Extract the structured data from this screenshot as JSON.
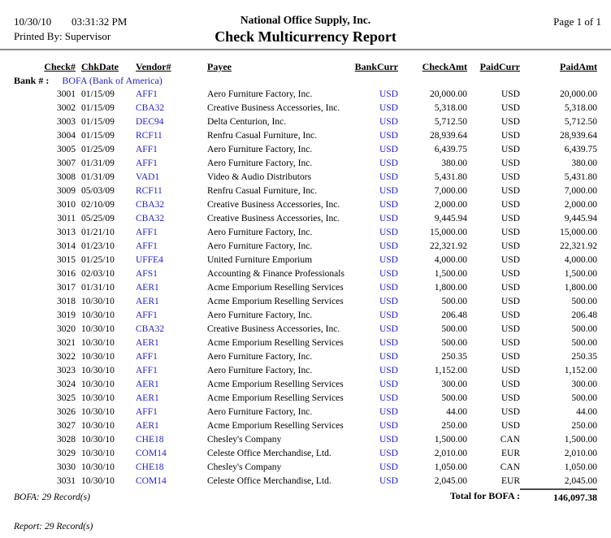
{
  "page": {
    "date": "10/30/10",
    "time": "03:31:32 PM",
    "printed_by": "Printed By: Supervisor",
    "company": "National Office Supply, Inc.",
    "title": "Check Multicurrency Report",
    "page_indicator": "Page 1 of 1"
  },
  "colors": {
    "link_blue": "#2222cc",
    "rule_gray": "#8a8a8a"
  },
  "table": {
    "columns": [
      "Check#",
      "ChkDate",
      "Vendor#",
      "Payee",
      "BankCurr",
      "CheckAmt",
      "PaidCurr",
      "PaidAmt"
    ],
    "bank_group": {
      "label": "Bank # :",
      "value": "BOFA (Bank of America)"
    },
    "rows": [
      {
        "check": "3001",
        "date": "01/15/09",
        "vendor": "AFF1",
        "payee": "Aero Furniture Factory, Inc.",
        "bank_curr": "USD",
        "check_amt": "20,000.00",
        "paid_curr": "USD",
        "paid_amt": "20,000.00"
      },
      {
        "check": "3002",
        "date": "01/15/09",
        "vendor": "CBA32",
        "payee": "Creative Business Accessories, Inc.",
        "bank_curr": "USD",
        "check_amt": "5,318.00",
        "paid_curr": "USD",
        "paid_amt": "5,318.00"
      },
      {
        "check": "3003",
        "date": "01/15/09",
        "vendor": "DEC94",
        "payee": "Delta Centurion, Inc.",
        "bank_curr": "USD",
        "check_amt": "5,712.50",
        "paid_curr": "USD",
        "paid_amt": "5,712.50"
      },
      {
        "check": "3004",
        "date": "01/15/09",
        "vendor": "RCF11",
        "payee": "Renfru Casual Furniture, Inc.",
        "bank_curr": "USD",
        "check_amt": "28,939.64",
        "paid_curr": "USD",
        "paid_amt": "28,939.64"
      },
      {
        "check": "3005",
        "date": "01/25/09",
        "vendor": "AFF1",
        "payee": "Aero Furniture Factory, Inc.",
        "bank_curr": "USD",
        "check_amt": "6,439.75",
        "paid_curr": "USD",
        "paid_amt": "6,439.75"
      },
      {
        "check": "3007",
        "date": "01/31/09",
        "vendor": "AFF1",
        "payee": "Aero Furniture Factory, Inc.",
        "bank_curr": "USD",
        "check_amt": "380.00",
        "paid_curr": "USD",
        "paid_amt": "380.00"
      },
      {
        "check": "3008",
        "date": "01/31/09",
        "vendor": "VAD1",
        "payee": "Video & Audio Distributors",
        "bank_curr": "USD",
        "check_amt": "5,431.80",
        "paid_curr": "USD",
        "paid_amt": "5,431.80"
      },
      {
        "check": "3009",
        "date": "05/03/09",
        "vendor": "RCF11",
        "payee": "Renfru Casual Furniture, Inc.",
        "bank_curr": "USD",
        "check_amt": "7,000.00",
        "paid_curr": "USD",
        "paid_amt": "7,000.00"
      },
      {
        "check": "3010",
        "date": "02/10/09",
        "vendor": "CBA32",
        "payee": "Creative Business Accessories, Inc.",
        "bank_curr": "USD",
        "check_amt": "2,000.00",
        "paid_curr": "USD",
        "paid_amt": "2,000.00"
      },
      {
        "check": "3011",
        "date": "05/25/09",
        "vendor": "CBA32",
        "payee": "Creative Business Accessories, Inc.",
        "bank_curr": "USD",
        "check_amt": "9,445.94",
        "paid_curr": "USD",
        "paid_amt": "9,445.94"
      },
      {
        "check": "3013",
        "date": "01/21/10",
        "vendor": "AFF1",
        "payee": "Aero Furniture Factory, Inc.",
        "bank_curr": "USD",
        "check_amt": "15,000.00",
        "paid_curr": "USD",
        "paid_amt": "15,000.00"
      },
      {
        "check": "3014",
        "date": "01/23/10",
        "vendor": "AFF1",
        "payee": "Aero Furniture Factory, Inc.",
        "bank_curr": "USD",
        "check_amt": "22,321.92",
        "paid_curr": "USD",
        "paid_amt": "22,321.92"
      },
      {
        "check": "3015",
        "date": "01/25/10",
        "vendor": "UFFE4",
        "payee": "United Furniture Emporium",
        "bank_curr": "USD",
        "check_amt": "4,000.00",
        "paid_curr": "USD",
        "paid_amt": "4,000.00"
      },
      {
        "check": "3016",
        "date": "02/03/10",
        "vendor": "AFS1",
        "payee": "Accounting & Finance Professionals",
        "bank_curr": "USD",
        "check_amt": "1,500.00",
        "paid_curr": "USD",
        "paid_amt": "1,500.00"
      },
      {
        "check": "3017",
        "date": "01/31/10",
        "vendor": "AER1",
        "payee": "Acme Emporium Reselling Services",
        "bank_curr": "USD",
        "check_amt": "1,800.00",
        "paid_curr": "USD",
        "paid_amt": "1,800.00"
      },
      {
        "check": "3018",
        "date": "10/30/10",
        "vendor": "AER1",
        "payee": "Acme Emporium Reselling Services",
        "bank_curr": "USD",
        "check_amt": "500.00",
        "paid_curr": "USD",
        "paid_amt": "500.00"
      },
      {
        "check": "3019",
        "date": "10/30/10",
        "vendor": "AFF1",
        "payee": "Aero Furniture Factory, Inc.",
        "bank_curr": "USD",
        "check_amt": "206.48",
        "paid_curr": "USD",
        "paid_amt": "206.48"
      },
      {
        "check": "3020",
        "date": "10/30/10",
        "vendor": "CBA32",
        "payee": "Creative Business Accessories, Inc.",
        "bank_curr": "USD",
        "check_amt": "500.00",
        "paid_curr": "USD",
        "paid_amt": "500.00"
      },
      {
        "check": "3021",
        "date": "10/30/10",
        "vendor": "AER1",
        "payee": "Acme Emporium Reselling Services",
        "bank_curr": "USD",
        "check_amt": "500.00",
        "paid_curr": "USD",
        "paid_amt": "500.00"
      },
      {
        "check": "3022",
        "date": "10/30/10",
        "vendor": "AFF1",
        "payee": "Aero Furniture Factory, Inc.",
        "bank_curr": "USD",
        "check_amt": "250.35",
        "paid_curr": "USD",
        "paid_amt": "250.35"
      },
      {
        "check": "3023",
        "date": "10/30/10",
        "vendor": "AFF1",
        "payee": "Aero Furniture Factory, Inc.",
        "bank_curr": "USD",
        "check_amt": "1,152.00",
        "paid_curr": "USD",
        "paid_amt": "1,152.00"
      },
      {
        "check": "3024",
        "date": "10/30/10",
        "vendor": "AER1",
        "payee": "Acme Emporium Reselling Services",
        "bank_curr": "USD",
        "check_amt": "300.00",
        "paid_curr": "USD",
        "paid_amt": "300.00"
      },
      {
        "check": "3025",
        "date": "10/30/10",
        "vendor": "AER1",
        "payee": "Acme Emporium Reselling Services",
        "bank_curr": "USD",
        "check_amt": "500.00",
        "paid_curr": "USD",
        "paid_amt": "500.00"
      },
      {
        "check": "3026",
        "date": "10/30/10",
        "vendor": "AFF1",
        "payee": "Aero Furniture Factory, Inc.",
        "bank_curr": "USD",
        "check_amt": "44.00",
        "paid_curr": "USD",
        "paid_amt": "44.00"
      },
      {
        "check": "3027",
        "date": "10/30/10",
        "vendor": "AER1",
        "payee": "Acme Emporium Reselling Services",
        "bank_curr": "USD",
        "check_amt": "250.00",
        "paid_curr": "USD",
        "paid_amt": "250.00"
      },
      {
        "check": "3028",
        "date": "10/30/10",
        "vendor": "CHE18",
        "payee": "Chesley's Company",
        "bank_curr": "USD",
        "check_amt": "1,500.00",
        "paid_curr": "CAN",
        "paid_amt": "1,500.00"
      },
      {
        "check": "3029",
        "date": "10/30/10",
        "vendor": "COM14",
        "payee": "Celeste Office Merchandise, Ltd.",
        "bank_curr": "USD",
        "check_amt": "2,010.00",
        "paid_curr": "EUR",
        "paid_amt": "2,010.00"
      },
      {
        "check": "3030",
        "date": "10/30/10",
        "vendor": "CHE18",
        "payee": "Chesley's Company",
        "bank_curr": "USD",
        "check_amt": "1,050.00",
        "paid_curr": "CAN",
        "paid_amt": "1,050.00"
      },
      {
        "check": "3031",
        "date": "10/30/10",
        "vendor": "COM14",
        "payee": "Celeste Office Merchandise, Ltd.",
        "bank_curr": "USD",
        "check_amt": "2,045.00",
        "paid_curr": "EUR",
        "paid_amt": "2,045.00"
      }
    ]
  },
  "footer": {
    "bank_records": "BOFA: 29 Record(s)",
    "total_label": "Total for BOFA :",
    "total_amount": "146,097.38",
    "report_records": "Report: 29 Record(s)"
  }
}
